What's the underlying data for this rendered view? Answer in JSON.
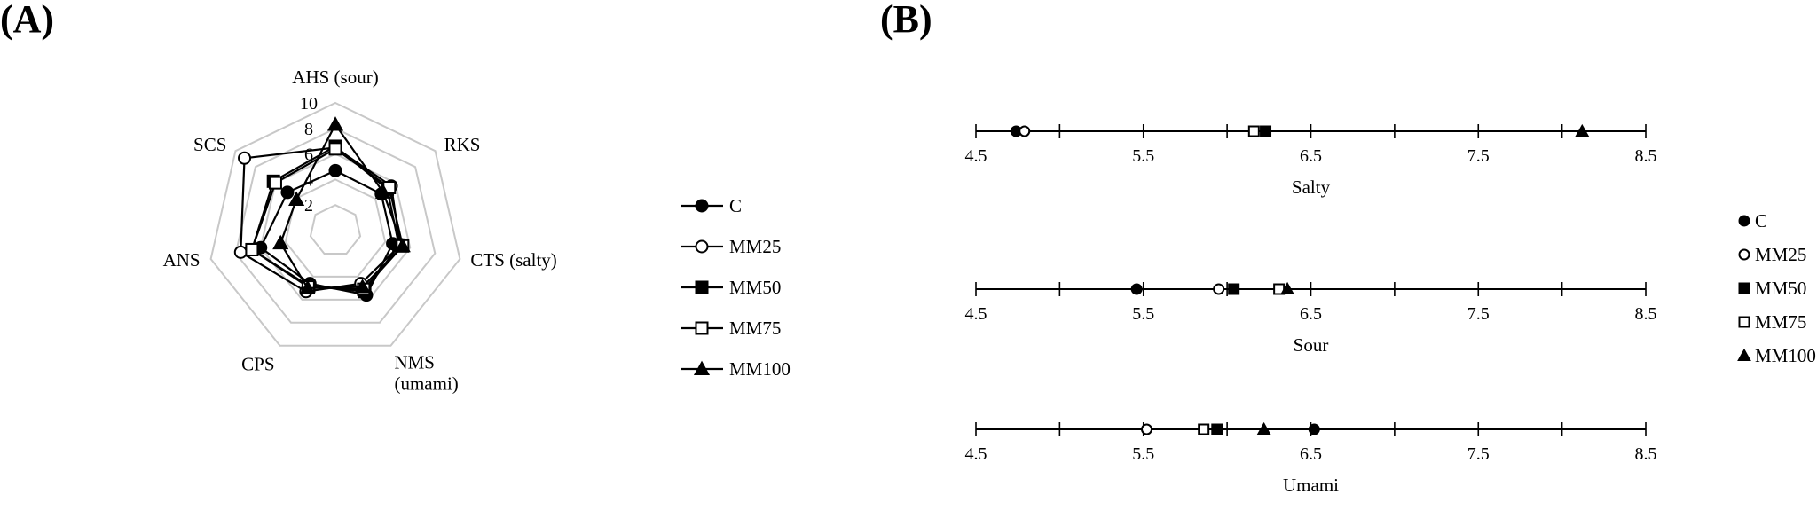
{
  "panels": [
    {
      "label": "(A)"
    },
    {
      "label": "(B)"
    }
  ],
  "chart_data": [
    {
      "type": "radar",
      "axes": [
        "AHS (sour)",
        "RKS",
        "CTS (salty)",
        "NMS\n(umami)",
        "CPS",
        "ANS",
        "SCS"
      ],
      "tick_labels": [
        "2",
        "4",
        "6",
        "8",
        "10"
      ],
      "rlim": [
        0,
        10
      ],
      "legend_position": "right",
      "series": [
        {
          "name": "C",
          "marker": "filled-circle",
          "values": [
            4.7,
            4.6,
            4.6,
            5.6,
            4.6,
            6.0,
            4.8
          ]
        },
        {
          "name": "MM25",
          "marker": "open-circle",
          "values": [
            6.5,
            5.6,
            5.2,
            4.6,
            5.3,
            7.6,
            9.1
          ]
        },
        {
          "name": "MM50",
          "marker": "filled-square",
          "values": [
            6.6,
            5.2,
            5.1,
            5.3,
            4.8,
            6.7,
            6.2
          ]
        },
        {
          "name": "MM75",
          "marker": "open-square",
          "values": [
            6.4,
            5.4,
            5.4,
            5.1,
            4.9,
            6.7,
            6.0
          ]
        },
        {
          "name": "MM100",
          "marker": "filled-triangle",
          "values": [
            8.3,
            4.8,
            5.4,
            4.9,
            5.0,
            4.4,
            3.9
          ]
        }
      ]
    },
    {
      "type": "scatter",
      "xlim": [
        4.5,
        8.5
      ],
      "x_ticks": [
        "4.5",
        "5.5",
        "6.5",
        "7.5",
        "8.5"
      ],
      "legend_position": "right",
      "series_names": [
        "C",
        "MM25",
        "MM50",
        "MM75",
        "MM100"
      ],
      "markers": [
        "filled-circle",
        "open-circle",
        "filled-square",
        "open-square",
        "filled-triangle"
      ],
      "rows": [
        {
          "label": "Salty",
          "values": [
            4.74,
            4.79,
            6.23,
            6.16,
            8.12
          ]
        },
        {
          "label": "Sour",
          "values": [
            5.46,
            5.95,
            6.04,
            6.31,
            6.36
          ]
        },
        {
          "label": "Umami",
          "values": [
            6.52,
            5.52,
            5.94,
            5.86,
            6.22
          ]
        }
      ]
    }
  ]
}
